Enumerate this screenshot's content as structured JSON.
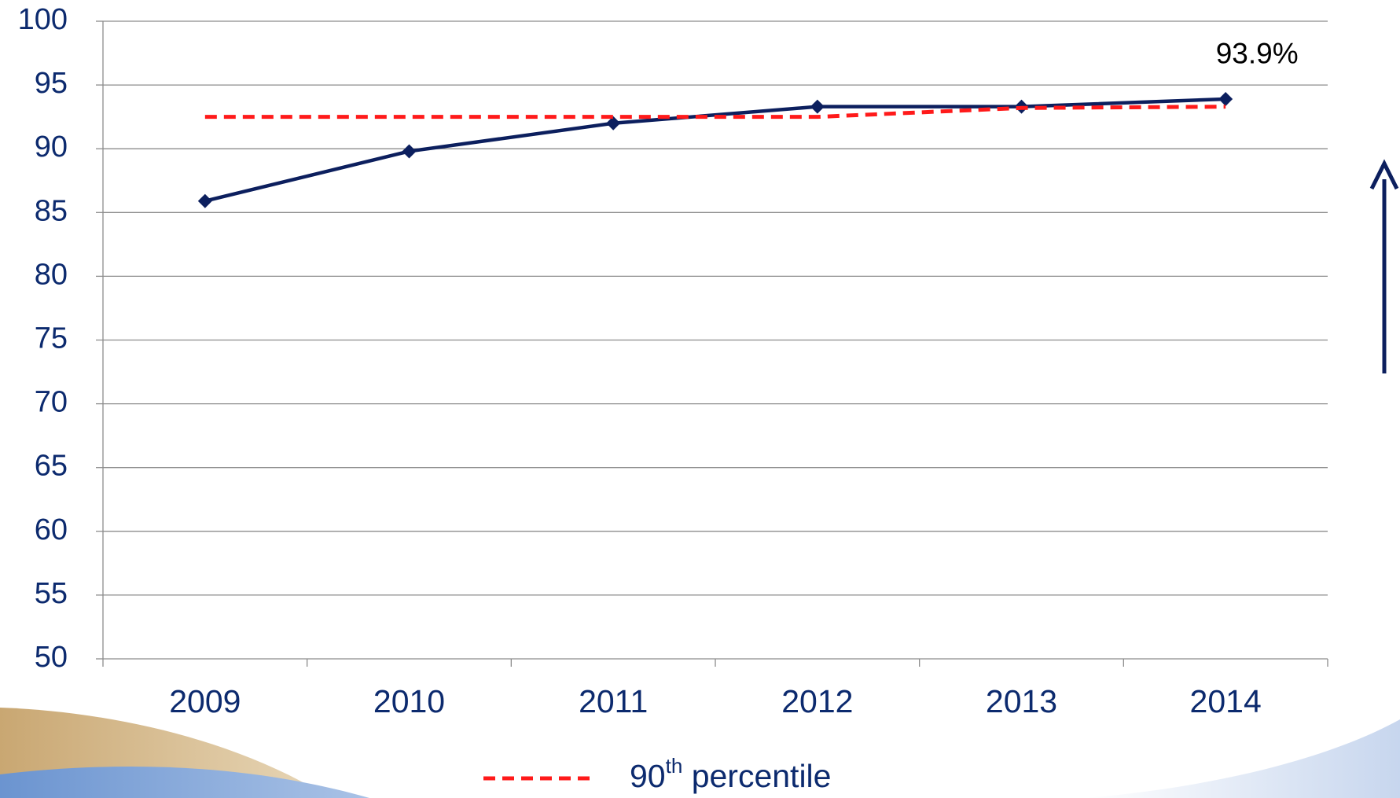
{
  "chart_data": {
    "type": "line",
    "categories": [
      "2009",
      "2010",
      "2011",
      "2012",
      "2013",
      "2014"
    ],
    "series": [
      {
        "color": "#0c1f5e",
        "values": [
          85.9,
          89.8,
          92.0,
          93.3,
          93.3,
          93.9
        ],
        "value_labels": [
          null,
          null,
          null,
          null,
          null,
          "93.9%"
        ]
      },
      {
        "name": "90th percentile",
        "color": "#ff1a1a",
        "dashed": true,
        "values": [
          92.5,
          92.5,
          92.5,
          92.5,
          93.2,
          93.3
        ]
      }
    ],
    "ylim": [
      50,
      100
    ],
    "yticks": [
      50,
      55,
      60,
      65,
      70,
      75,
      80,
      85,
      90,
      95,
      100
    ],
    "grid": true
  }
}
